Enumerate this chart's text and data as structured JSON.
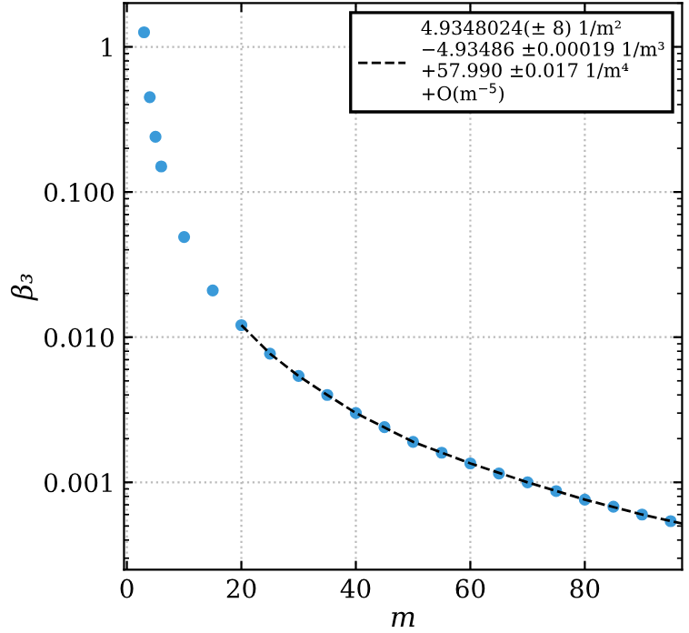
{
  "chart_data": {
    "type": "scatter",
    "xlabel": "m",
    "ylabel": "β₃",
    "log": "y",
    "xlim": [
      -0.5,
      97
    ],
    "xticks": [
      0,
      20,
      40,
      60,
      80
    ],
    "ylim": [
      0.00025,
      2
    ],
    "yticks": [
      {
        "value": 1,
        "label": "1"
      },
      {
        "value": 0.1,
        "label": "0.100"
      },
      {
        "value": 0.01,
        "label": "0.010"
      },
      {
        "value": 0.001,
        "label": "0.001"
      }
    ],
    "grid": true,
    "legend": "top right",
    "series": [
      {
        "marker": "circle",
        "color": "#3a9ad9",
        "x": [
          3,
          4,
          5,
          6,
          10,
          15,
          20,
          25,
          30,
          35,
          40,
          45,
          50,
          55,
          60,
          65,
          70,
          75,
          80,
          85,
          90,
          95
        ],
        "values": [
          1.26,
          0.45,
          0.24,
          0.15,
          0.049,
          0.021,
          0.0121,
          0.0077,
          0.0054,
          0.004,
          0.003,
          0.0024,
          0.0019,
          0.0016,
          0.00135,
          0.00115,
          0.001,
          0.00087,
          0.00076,
          0.00068,
          0.0006,
          0.00054
        ]
      },
      {
        "type": "line",
        "color": "#000000",
        "line_style": "dashed",
        "name": "4.9348024(± 8) 1/m²\n−4.93486 ±0.00019 1/m³\n+57.990 ±0.017 1/m⁴\n+O(m$^{−5}$)",
        "x": [
          20,
          25,
          30,
          35,
          40,
          50,
          60,
          70,
          80,
          90,
          97
        ],
        "values": [
          0.0121,
          0.0077,
          0.0054,
          0.004,
          0.003,
          0.0019,
          0.00135,
          0.001,
          0.00076,
          0.0006,
          0.00052
        ]
      }
    ]
  }
}
